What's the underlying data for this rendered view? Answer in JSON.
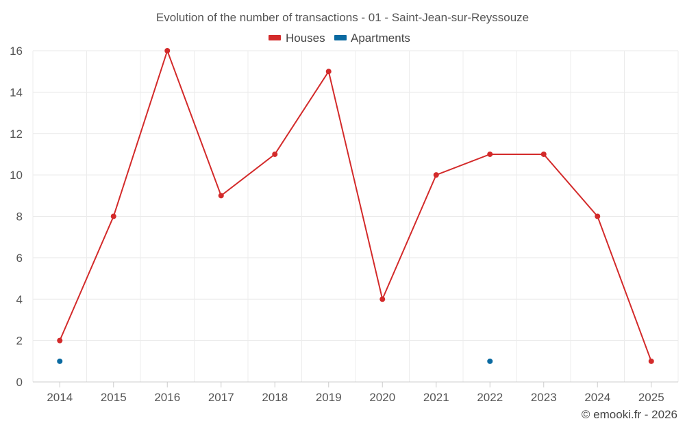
{
  "chart_data": {
    "type": "line",
    "title": "Evolution of the number of transactions - 01 - Saint-Jean-sur-Reyssouze",
    "categories": [
      "2014",
      "2015",
      "2016",
      "2017",
      "2018",
      "2019",
      "2020",
      "2021",
      "2022",
      "2023",
      "2024",
      "2025"
    ],
    "series": [
      {
        "name": "Houses",
        "color": "#d32a2a",
        "values": [
          2,
          8,
          16,
          9,
          11,
          15,
          4,
          10,
          11,
          11,
          8,
          1
        ]
      },
      {
        "name": "Apartments",
        "color": "#0a6aa1",
        "values": [
          1,
          null,
          null,
          null,
          null,
          null,
          null,
          null,
          1,
          null,
          null,
          null
        ]
      }
    ],
    "xlabel": "",
    "ylabel": "",
    "ylim": [
      0,
      16
    ],
    "yticks": [
      0,
      2,
      4,
      6,
      8,
      10,
      12,
      14,
      16
    ],
    "grid": true,
    "legend": "top-center"
  },
  "credit": "© emooki.fr - 2026"
}
